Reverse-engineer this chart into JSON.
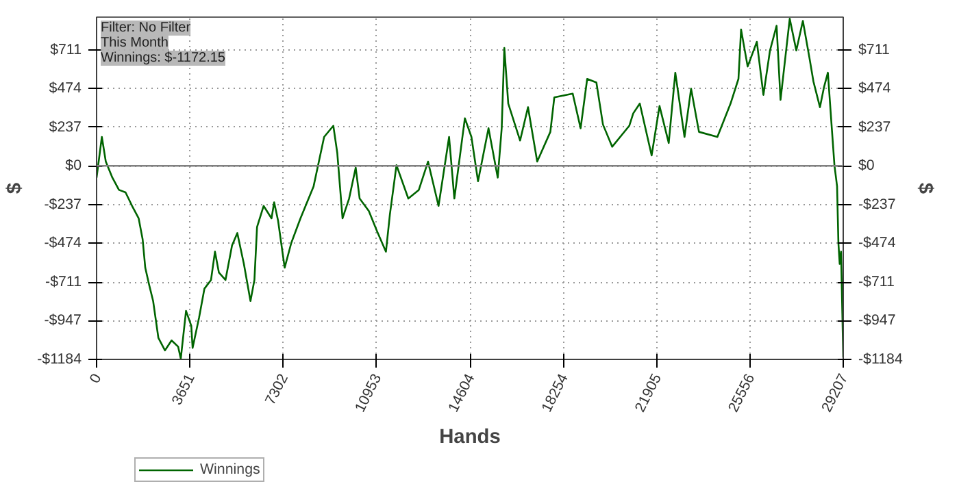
{
  "chart_data": {
    "type": "line",
    "xlabel": "Hands",
    "ylabel": "$",
    "y2label": "$",
    "annotations": [
      "Filter: No Filter",
      "This Month",
      "Winnings: $-1172.15"
    ],
    "x": [
      0,
      206,
      360,
      617,
      875,
      1132,
      1389,
      1646,
      1801,
      1904,
      2058,
      2212,
      2418,
      2675,
      2933,
      3190,
      3293,
      3499,
      3704,
      3756,
      4013,
      4219,
      4476,
      4631,
      4785,
      5042,
      5299,
      5505,
      5762,
      6020,
      6174,
      6277,
      6534,
      6843,
      6946,
      7100,
      7357,
      7615,
      7975,
      8489,
      8901,
      9261,
      9415,
      9621,
      9878,
      10136,
      10290,
      10650,
      10959,
      11319,
      11473,
      11731,
      12194,
      12605,
      12965,
      13377,
      13789,
      13995,
      14406,
      14663,
      14921,
      15332,
      15692,
      15847,
      15950,
      16104,
      16567,
      16876,
      17236,
      17750,
      17905,
      18625,
      18934,
      19191,
      19551,
      19808,
      20168,
      20837,
      20992,
      21249,
      21712,
      22021,
      22381,
      22638,
      22998,
      23255,
      23564,
      24284,
      24799,
      25108,
      25211,
      25468,
      25828,
      26085,
      26342,
      26600,
      26754,
      27114,
      27371,
      27628,
      27885,
      28040,
      28297,
      28451,
      28606,
      28760,
      28863,
      28966,
      29018,
      29069,
      29121,
      29172,
      29207
    ],
    "series": [
      {
        "name": "Winnings",
        "color": "#006400",
        "values": [
          -72,
          177,
          26,
          -72,
          -147,
          -162,
          -245,
          -321,
          -449,
          -623,
          -729,
          -827,
          -1053,
          -1129,
          -1068,
          -1106,
          -1180,
          -887,
          -978,
          -1114,
          -925,
          -751,
          -698,
          -525,
          -653,
          -698,
          -487,
          -411,
          -600,
          -827,
          -698,
          -374,
          -245,
          -321,
          -223,
          -336,
          -623,
          -472,
          -321,
          -125,
          177,
          245,
          79,
          -321,
          -200,
          -11,
          -200,
          -276,
          -396,
          -525,
          -298,
          4,
          -200,
          -147,
          26,
          -245,
          177,
          -200,
          291,
          177,
          -94,
          230,
          -72,
          230,
          721,
          381,
          155,
          359,
          26,
          208,
          419,
          442,
          230,
          532,
          510,
          253,
          117,
          245,
          321,
          381,
          64,
          366,
          140,
          570,
          177,
          472,
          208,
          177,
          381,
          532,
          834,
          608,
          759,
          434,
          706,
          857,
          404,
          900,
          706,
          887,
          661,
          517,
          359,
          479,
          570,
          230,
          4,
          -125,
          -472,
          -600,
          -525,
          -902,
          -1172
        ]
      }
    ],
    "xlim": [
      0,
      29207
    ],
    "xticks": [
      0,
      3651,
      7302,
      10953,
      14604,
      18254,
      21905,
      25556,
      29207
    ],
    "ylim": [
      -1184,
      910
    ],
    "yticks": [
      {
        "value": -1184,
        "label": "-$1184"
      },
      {
        "value": -947,
        "label": "-$947"
      },
      {
        "value": -711,
        "label": "-$711"
      },
      {
        "value": -474,
        "label": "-$474"
      },
      {
        "value": -237,
        "label": "-$237"
      },
      {
        "value": 0,
        "label": "$0"
      },
      {
        "value": 237,
        "label": "$237"
      },
      {
        "value": 474,
        "label": "$474"
      },
      {
        "value": 711,
        "label": "$711"
      }
    ],
    "y2lim": [
      -1184,
      910
    ],
    "y2ticks": [
      {
        "value": -1184,
        "label": "-$1184"
      },
      {
        "value": -947,
        "label": "-$947"
      },
      {
        "value": -711,
        "label": "-$711"
      },
      {
        "value": -474,
        "label": "-$474"
      },
      {
        "value": -237,
        "label": "-$237"
      },
      {
        "value": 0,
        "label": "$0"
      },
      {
        "value": 237,
        "label": "$237"
      },
      {
        "value": 474,
        "label": "$474"
      },
      {
        "value": 711,
        "label": "$711"
      }
    ],
    "ref_lines": [
      {
        "axis": "y",
        "value": 0,
        "label": null,
        "color": "#808080",
        "line_style": "solid"
      }
    ],
    "grid": true,
    "legend": "bottom left",
    "marker": "none",
    "line_style": "solid"
  }
}
